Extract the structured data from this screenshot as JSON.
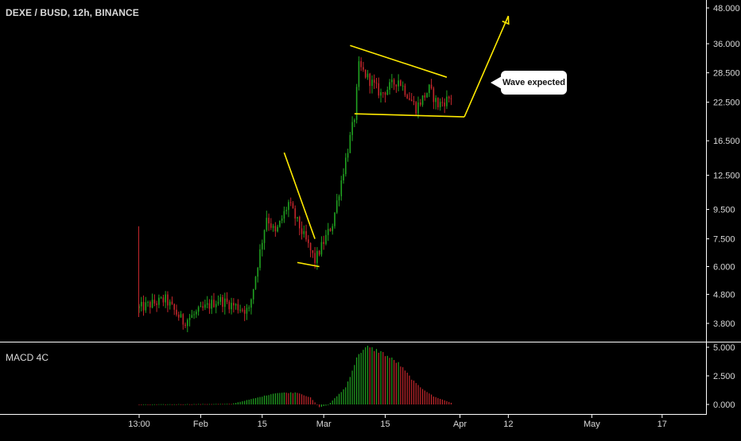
{
  "header": {
    "title": "DEXE / BUSD, 12h, BINANCE",
    "indicator_label": "MACD 4C"
  },
  "annotation": {
    "callout_text": "Wave expected"
  },
  "colors": {
    "background": "#000000",
    "up": "#21a321",
    "down": "#c4272c",
    "pattern_lines": "#ffea00",
    "axis_text": "#d9d9d9",
    "separator": "#ffffff"
  },
  "chart_data": [
    {
      "type": "candlestick",
      "title": "DEXE / BUSD, 12h, BINANCE",
      "scale": "log",
      "y_ticks": [
        {
          "label": "48.000",
          "value": 48
        },
        {
          "label": "36.000",
          "value": 36
        },
        {
          "label": "28.500",
          "value": 28.5
        },
        {
          "label": "22.500",
          "value": 22.5
        },
        {
          "label": "16.500",
          "value": 16.5
        },
        {
          "label": "12.500",
          "value": 12.5
        },
        {
          "label": "9.500",
          "value": 9.5
        },
        {
          "label": "7.500",
          "value": 7.5
        },
        {
          "label": "6.000",
          "value": 6
        },
        {
          "label": "4.800",
          "value": 4.8
        },
        {
          "label": "3.800",
          "value": 3.8
        }
      ],
      "x_ticks": [
        {
          "label": "13:00",
          "date": "2021-01-18"
        },
        {
          "label": "Feb",
          "date": "2021-02-01"
        },
        {
          "label": "15",
          "date": "2021-02-15"
        },
        {
          "label": "Mar",
          "date": "2021-03-01"
        },
        {
          "label": "15",
          "date": "2021-03-15"
        },
        {
          "label": "Apr",
          "date": "2021-04-01"
        },
        {
          "label": "12",
          "date": "2021-04-12"
        },
        {
          "label": "May",
          "date": "2021-05-01"
        },
        {
          "label": "17",
          "date": "2021-05-17"
        }
      ],
      "segments": [
        {
          "date": "2021-01-18",
          "close": 4.3
        },
        {
          "date": "2021-01-24",
          "close": 4.6
        },
        {
          "date": "2021-01-28",
          "close": 3.85
        },
        {
          "date": "2021-02-05",
          "close": 4.6
        },
        {
          "date": "2021-02-12",
          "close": 4.2
        },
        {
          "date": "2021-02-16",
          "close": 9.0
        },
        {
          "date": "2021-02-18",
          "close": 7.8
        },
        {
          "date": "2021-02-21",
          "close": 10.0
        },
        {
          "date": "2021-02-27",
          "close": 6.3
        },
        {
          "date": "2021-03-03",
          "close": 8.5
        },
        {
          "date": "2021-03-05",
          "close": 12.0
        },
        {
          "date": "2021-03-08",
          "close": 20.0
        },
        {
          "date": "2021-03-09",
          "close": 30.0
        },
        {
          "date": "2021-03-14",
          "close": 24.0
        },
        {
          "date": "2021-03-18",
          "close": 27.0
        },
        {
          "date": "2021-03-22",
          "close": 21.5
        },
        {
          "date": "2021-03-25",
          "close": 25.0
        },
        {
          "date": "2021-03-27",
          "close": 22.0
        },
        {
          "date": "2021-03-30",
          "close": 23.5
        }
      ],
      "pattern_lines": [
        {
          "name": "pennant-upper",
          "points": [
            [
              "2021-02-20",
              15.0
            ],
            [
              "2021-02-27",
              7.5
            ]
          ]
        },
        {
          "name": "pennant-lower",
          "points": [
            [
              "2021-02-23",
              6.2
            ],
            [
              "2021-02-28",
              6.0
            ]
          ]
        },
        {
          "name": "flag-upper",
          "points": [
            [
              "2021-03-07",
              35.5
            ],
            [
              "2021-03-29",
              27.5
            ]
          ]
        },
        {
          "name": "flag-lower",
          "points": [
            [
              "2021-03-08",
              20.5
            ],
            [
              "2021-04-02",
              20.0
            ]
          ]
        },
        {
          "name": "projection",
          "points": [
            [
              "2021-04-02",
              20.0
            ],
            [
              "2021-04-12",
              45.0
            ]
          ]
        }
      ]
    },
    {
      "type": "bar",
      "title": "MACD 4C",
      "y_ticks": [
        {
          "label": "5.000",
          "value": 5
        },
        {
          "label": "2.500",
          "value": 2.5
        },
        {
          "label": "0.000",
          "value": 0
        }
      ],
      "ylim": [
        -0.4,
        5.3
      ],
      "segments": [
        {
          "date": "2021-01-18",
          "value": 0.0
        },
        {
          "date": "2021-02-08",
          "value": 0.05
        },
        {
          "date": "2021-02-14",
          "value": 0.6
        },
        {
          "date": "2021-02-18",
          "value": 1.0
        },
        {
          "date": "2021-02-23",
          "value": 1.05
        },
        {
          "date": "2021-02-26",
          "value": 0.6
        },
        {
          "date": "2021-02-28",
          "value": -0.25
        },
        {
          "date": "2021-03-02",
          "value": -0.05
        },
        {
          "date": "2021-03-06",
          "value": 1.5
        },
        {
          "date": "2021-03-09",
          "value": 4.5
        },
        {
          "date": "2021-03-11",
          "value": 5.0
        },
        {
          "date": "2021-03-14",
          "value": 4.6
        },
        {
          "date": "2021-03-18",
          "value": 3.6
        },
        {
          "date": "2021-03-22",
          "value": 1.8
        },
        {
          "date": "2021-03-26",
          "value": 0.7
        },
        {
          "date": "2021-03-30",
          "value": 0.15
        }
      ]
    }
  ]
}
